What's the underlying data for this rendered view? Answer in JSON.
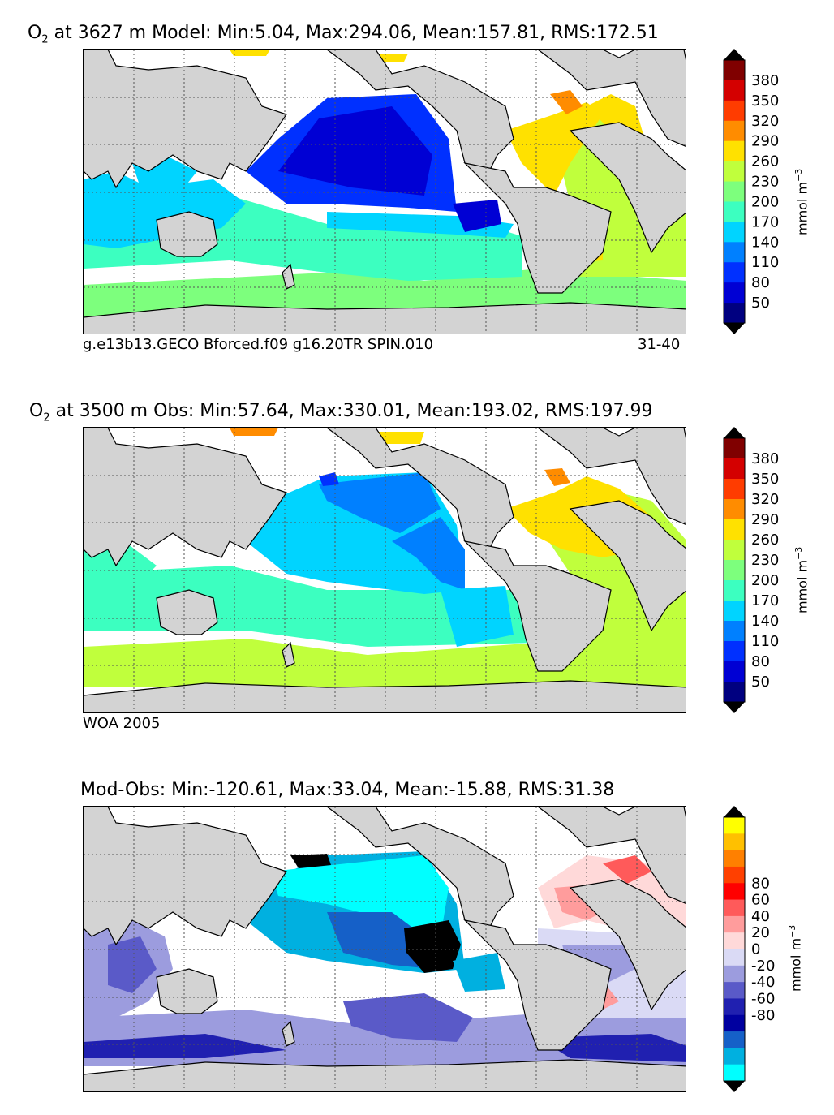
{
  "panels": [
    {
      "title_prefix": "O",
      "title_sub": "2",
      "title_rest": " at 3627 m Model: Min:5.04, Max:294.06, Mean:157.81, RMS:172.51",
      "caption_left": "g.e13b13.GECO Bforced.f09 g16.20TR SPIN.010",
      "caption_right": "31-40",
      "colorbar": {
        "unit": "mmol m",
        "unit_sup": "−3",
        "ticks": [
          "380",
          "350",
          "320",
          "290",
          "260",
          "230",
          "200",
          "170",
          "140",
          "110",
          "80",
          "50"
        ],
        "colors": [
          "#800000",
          "#d40000",
          "#ff3c00",
          "#ff8c00",
          "#ffe100",
          "#c0ff3c",
          "#7dff7d",
          "#3cffc0",
          "#00d4ff",
          "#0080ff",
          "#0030ff",
          "#0000d4",
          "#000080"
        ]
      }
    },
    {
      "title_prefix": "O",
      "title_sub": "2",
      "title_rest": " at 3500 m Obs: Min:57.64, Max:330.01, Mean:193.02, RMS:197.99",
      "caption_left": "WOA 2005",
      "caption_right": "",
      "colorbar": {
        "unit": "mmol m",
        "unit_sup": "−3",
        "ticks": [
          "380",
          "350",
          "320",
          "290",
          "260",
          "230",
          "200",
          "170",
          "140",
          "110",
          "80",
          "50"
        ],
        "colors": [
          "#800000",
          "#d40000",
          "#ff3c00",
          "#ff8c00",
          "#ffe100",
          "#c0ff3c",
          "#7dff7d",
          "#3cffc0",
          "#00d4ff",
          "#0080ff",
          "#0030ff",
          "#0000d4",
          "#000080"
        ]
      }
    },
    {
      "title_prefix": "",
      "title_sub": "",
      "title_rest": "Mod-Obs: Min:-120.61, Max:33.04, Mean:-15.88, RMS:31.38",
      "caption_left": "",
      "caption_right": "",
      "colorbar": {
        "unit": "mmol m",
        "unit_sup": "−3",
        "ticks": [
          "80",
          "60",
          "40",
          "20",
          "0",
          "-20",
          "-40",
          "-60",
          "-80"
        ],
        "colors": [
          "#ffff00",
          "#ffc000",
          "#ff8000",
          "#ff4000",
          "#ff0000",
          "#ff5a5a",
          "#ff9c9c",
          "#ffd9d9",
          "#dadaf5",
          "#9c9cde",
          "#5a5ac8",
          "#2020b0",
          "#0000a0",
          "#1560c8",
          "#00b0e0",
          "#00ffff"
        ]
      }
    }
  ],
  "colors": {
    "land": "#d3d3d3",
    "ocean_nodata": "#ffffff",
    "grid": "#555555",
    "over": "#000000"
  }
}
